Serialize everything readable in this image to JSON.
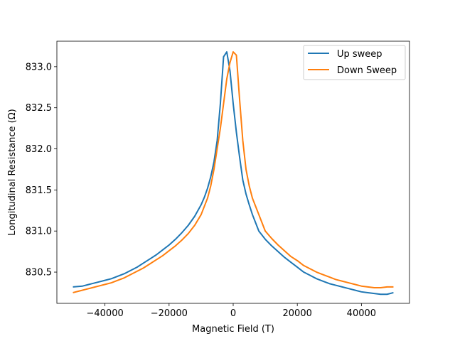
{
  "chart_data": {
    "type": "line",
    "title": "",
    "xlabel": "Magnetic Field (T)",
    "ylabel": "Longitudinal Resistance (Ω)",
    "xlim": [
      -55000,
      55000
    ],
    "ylim": [
      830.12,
      833.31
    ],
    "xticks": [
      -40000,
      -20000,
      0,
      20000,
      40000
    ],
    "xtick_labels": [
      "−40000",
      "−20000",
      "0",
      "20000",
      "40000"
    ],
    "yticks": [
      830.5,
      831.0,
      831.5,
      832.0,
      832.5,
      833.0
    ],
    "ytick_labels": [
      "830.5",
      "831.0",
      "831.5",
      "832.0",
      "832.5",
      "833.0"
    ],
    "grid": false,
    "legend_position": "top-right",
    "series": [
      {
        "name": "Up sweep",
        "color": "#1f77b4",
        "x": [
          -50000,
          -47000,
          -45000,
          -42000,
          -40000,
          -38000,
          -36000,
          -34000,
          -32000,
          -30000,
          -28000,
          -26000,
          -24000,
          -22000,
          -20000,
          -18000,
          -16000,
          -14000,
          -12000,
          -10000,
          -9000,
          -8000,
          -7000,
          -6000,
          -5000,
          -4000,
          -3000,
          -2000,
          -1000,
          0,
          1000,
          2000,
          3000,
          4000,
          5000,
          6000,
          7000,
          8000,
          10000,
          12000,
          14000,
          16000,
          18000,
          20000,
          22000,
          24000,
          26000,
          28000,
          30000,
          32000,
          34000,
          36000,
          38000,
          40000,
          42000,
          44000,
          46000,
          48000,
          50000
        ],
        "y": [
          830.32,
          830.33,
          830.35,
          830.38,
          830.4,
          830.42,
          830.45,
          830.48,
          830.52,
          830.56,
          830.61,
          830.66,
          830.71,
          830.77,
          830.83,
          830.9,
          830.98,
          831.07,
          831.18,
          831.32,
          831.41,
          831.52,
          831.66,
          831.84,
          832.1,
          832.55,
          833.12,
          833.18,
          832.95,
          832.55,
          832.2,
          831.9,
          831.62,
          831.45,
          831.32,
          831.2,
          831.1,
          831.0,
          830.9,
          830.82,
          830.75,
          830.68,
          830.62,
          830.56,
          830.5,
          830.46,
          830.42,
          830.39,
          830.36,
          830.34,
          830.32,
          830.3,
          830.28,
          830.26,
          830.25,
          830.24,
          830.23,
          830.23,
          830.25
        ]
      },
      {
        "name": "Down Sweep",
        "color": "#ff7f0e",
        "x": [
          -50000,
          -48000,
          -46000,
          -44000,
          -42000,
          -40000,
          -38000,
          -36000,
          -34000,
          -32000,
          -30000,
          -28000,
          -26000,
          -24000,
          -22000,
          -20000,
          -18000,
          -16000,
          -14000,
          -12000,
          -10000,
          -8000,
          -7000,
          -6000,
          -5000,
          -4000,
          -3000,
          -2000,
          -1000,
          0,
          1000,
          2000,
          3000,
          4000,
          5000,
          6000,
          7000,
          8000,
          9000,
          10000,
          12000,
          14000,
          16000,
          18000,
          20000,
          22000,
          24000,
          26000,
          28000,
          30000,
          32000,
          34000,
          36000,
          38000,
          40000,
          42000,
          44000,
          46000,
          48000,
          50000
        ],
        "y": [
          830.25,
          830.27,
          830.29,
          830.31,
          830.33,
          830.35,
          830.37,
          830.4,
          830.43,
          830.47,
          830.51,
          830.55,
          830.6,
          830.65,
          830.7,
          830.76,
          830.82,
          830.89,
          830.97,
          831.07,
          831.2,
          831.4,
          831.55,
          831.75,
          832.0,
          832.25,
          832.55,
          832.85,
          833.05,
          833.18,
          833.14,
          832.6,
          832.1,
          831.75,
          831.55,
          831.4,
          831.3,
          831.2,
          831.1,
          831.0,
          830.91,
          830.83,
          830.76,
          830.69,
          830.64,
          830.58,
          830.54,
          830.5,
          830.47,
          830.44,
          830.41,
          830.39,
          830.37,
          830.35,
          830.33,
          830.32,
          830.31,
          830.31,
          830.32,
          830.32
        ]
      }
    ]
  }
}
